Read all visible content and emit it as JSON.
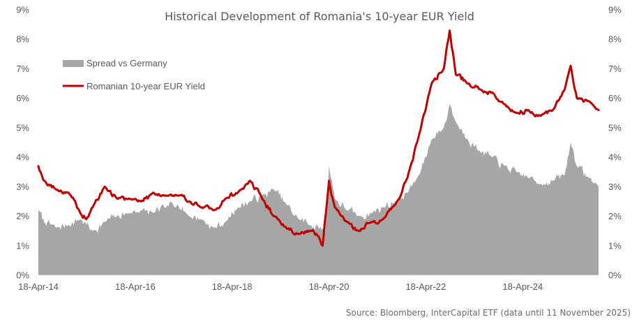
{
  "chart_data": {
    "type": "line",
    "title": "Historical Development of Romania's 10-year EUR Yield",
    "source": "Source: Bloomberg, InterCapital ETF (data until 11 November 2025)",
    "x_tick_labels": [
      "18-Apr-14",
      "18-Apr-16",
      "18-Apr-18",
      "18-Apr-20",
      "18-Apr-22",
      "18-Apr-24"
    ],
    "y_tick_labels": [
      "0%",
      "1%",
      "2%",
      "3%",
      "4%",
      "5%",
      "6%",
      "7%",
      "8%",
      "9%"
    ],
    "ylim": [
      0,
      9
    ],
    "xlim": [
      "2014-04-18",
      "2025-11-11"
    ],
    "legend_position": "top-left",
    "colors": {
      "spread": "#a6a6a6",
      "yield": "#c00000"
    },
    "series": [
      {
        "name": "Spread vs Germany",
        "kind": "area",
        "x": [
          "2014-04-18",
          "2014-06-01",
          "2014-09-01",
          "2014-12-01",
          "2015-03-01",
          "2015-06-01",
          "2015-09-01",
          "2015-12-01",
          "2016-03-01",
          "2016-06-01",
          "2016-09-01",
          "2016-12-01",
          "2017-03-01",
          "2017-06-01",
          "2017-09-01",
          "2017-12-01",
          "2018-03-01",
          "2018-06-01",
          "2018-09-01",
          "2018-12-01",
          "2019-03-01",
          "2019-06-01",
          "2019-09-01",
          "2019-12-01",
          "2020-02-01",
          "2020-03-20",
          "2020-04-18",
          "2020-06-01",
          "2020-09-01",
          "2020-12-01",
          "2021-03-01",
          "2021-06-01",
          "2021-09-01",
          "2021-12-01",
          "2022-03-01",
          "2022-06-01",
          "2022-09-01",
          "2022-10-15",
          "2022-12-01",
          "2023-03-01",
          "2023-06-01",
          "2023-09-01",
          "2023-12-01",
          "2024-03-01",
          "2024-06-01",
          "2024-09-01",
          "2024-12-01",
          "2025-03-01",
          "2025-04-15",
          "2025-06-01",
          "2025-09-01",
          "2025-11-11"
        ],
        "values": [
          2.2,
          1.8,
          1.6,
          1.7,
          1.9,
          1.5,
          1.8,
          2.0,
          2.1,
          2.2,
          2.1,
          2.3,
          2.4,
          2.0,
          1.9,
          1.6,
          1.8,
          2.3,
          2.5,
          2.7,
          2.9,
          2.4,
          1.9,
          1.7,
          1.6,
          1.5,
          3.7,
          2.6,
          2.2,
          2.0,
          2.1,
          2.3,
          2.5,
          2.8,
          3.4,
          4.6,
          5.0,
          5.8,
          5.2,
          4.6,
          4.2,
          4.0,
          3.7,
          3.5,
          3.3,
          3.1,
          3.2,
          3.4,
          4.5,
          3.7,
          3.3,
          3.0
        ]
      },
      {
        "name": "Romanian 10-year EUR Yield",
        "kind": "line",
        "x": [
          "2014-04-18",
          "2014-06-01",
          "2014-09-01",
          "2014-12-01",
          "2015-03-01",
          "2015-04-15",
          "2015-06-01",
          "2015-09-01",
          "2015-12-01",
          "2016-03-01",
          "2016-06-01",
          "2016-09-01",
          "2016-12-01",
          "2017-03-01",
          "2017-06-01",
          "2017-09-01",
          "2017-12-01",
          "2018-03-01",
          "2018-06-01",
          "2018-09-01",
          "2018-12-01",
          "2019-03-01",
          "2019-06-01",
          "2019-09-01",
          "2019-12-01",
          "2020-02-01",
          "2020-03-01",
          "2020-04-18",
          "2020-06-01",
          "2020-09-01",
          "2020-12-01",
          "2021-03-01",
          "2021-06-01",
          "2021-09-01",
          "2021-12-01",
          "2022-03-01",
          "2022-06-01",
          "2022-09-01",
          "2022-10-15",
          "2022-12-01",
          "2023-03-01",
          "2023-06-01",
          "2023-09-01",
          "2023-12-01",
          "2024-03-01",
          "2024-06-01",
          "2024-09-01",
          "2024-12-01",
          "2025-03-01",
          "2025-04-15",
          "2025-06-01",
          "2025-09-01",
          "2025-11-11"
        ],
        "values": [
          3.7,
          3.2,
          2.9,
          2.8,
          2.1,
          1.9,
          2.3,
          3.0,
          2.6,
          2.6,
          2.5,
          2.8,
          2.7,
          2.7,
          2.5,
          2.3,
          2.2,
          2.6,
          2.8,
          3.2,
          2.6,
          2.0,
          1.6,
          1.4,
          1.5,
          1.3,
          1.0,
          3.2,
          2.3,
          1.8,
          1.5,
          1.8,
          1.9,
          2.4,
          3.3,
          4.8,
          6.5,
          7.0,
          8.3,
          6.8,
          6.5,
          6.3,
          6.2,
          5.8,
          5.5,
          5.6,
          5.4,
          5.6,
          6.3,
          7.1,
          6.0,
          5.9,
          5.6
        ]
      }
    ]
  }
}
